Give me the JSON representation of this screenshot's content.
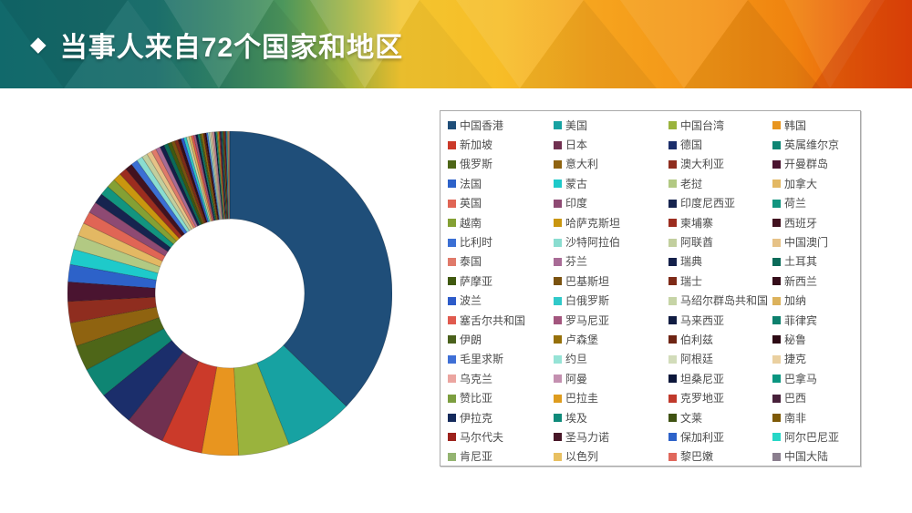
{
  "header": {
    "bullet": "◆",
    "title": "当事人来自72个国家和地区",
    "gradient_colors": [
      "#11696b",
      "#4c965c",
      "#f3c52f",
      "#f6a41e",
      "#f0830f",
      "#e54a0a"
    ],
    "title_color": "#ffffff"
  },
  "chart_data": {
    "type": "pie",
    "title": "",
    "donut": true,
    "inner_radius_ratio": 0.46,
    "start_angle_deg": 0,
    "clockwise": true,
    "grid": false,
    "legend_position": "right",
    "legend_columns": 4,
    "legend_rows": 18,
    "values_note": "no numeric labels shown in image; values are share estimates read from arc angles",
    "series": [
      {
        "name": "中国香港",
        "value": 36.7,
        "color": "#1f4e79"
      },
      {
        "name": "美国",
        "value": 6.7,
        "color": "#17a2a2"
      },
      {
        "name": "中国台湾",
        "value": 5.0,
        "color": "#9ab33d"
      },
      {
        "name": "韩国",
        "value": 3.6,
        "color": "#e8951f"
      },
      {
        "name": "新加坡",
        "value": 4.0,
        "color": "#cb3a2a"
      },
      {
        "name": "日本",
        "value": 3.8,
        "color": "#703050"
      },
      {
        "name": "德国",
        "value": 3.4,
        "color": "#1b2e6b"
      },
      {
        "name": "英属维尔京",
        "value": 3.0,
        "color": "#0e8573"
      },
      {
        "name": "俄罗斯",
        "value": 2.5,
        "color": "#4e6618"
      },
      {
        "name": "意大利",
        "value": 2.3,
        "color": "#8f6310"
      },
      {
        "name": "澳大利亚",
        "value": 2.1,
        "color": "#8f2d1f"
      },
      {
        "name": "开曼群岛",
        "value": 1.9,
        "color": "#4a1430"
      },
      {
        "name": "法国",
        "value": 1.7,
        "color": "#2d62c9"
      },
      {
        "name": "蒙古",
        "value": 1.5,
        "color": "#1ecaca"
      },
      {
        "name": "老挝",
        "value": 1.4,
        "color": "#b2c983"
      },
      {
        "name": "加拿大",
        "value": 1.3,
        "color": "#e3b863"
      },
      {
        "name": "英国",
        "value": 1.2,
        "color": "#e06555"
      },
      {
        "name": "印度",
        "value": 1.1,
        "color": "#8e4a73"
      },
      {
        "name": "印度尼西亚",
        "value": 1.0,
        "color": "#16244f"
      },
      {
        "name": "荷兰",
        "value": 0.95,
        "color": "#12957f"
      },
      {
        "name": "越南",
        "value": 0.9,
        "color": "#84a034"
      },
      {
        "name": "哈萨克斯坦",
        "value": 0.8,
        "color": "#c9960f"
      },
      {
        "name": "柬埔寨",
        "value": 0.75,
        "color": "#9c2d1f"
      },
      {
        "name": "西班牙",
        "value": 0.7,
        "color": "#421220"
      },
      {
        "name": "比利时",
        "value": 0.65,
        "color": "#3b6fd4"
      },
      {
        "name": "沙特阿拉伯",
        "value": 0.6,
        "color": "#8addd0"
      },
      {
        "name": "阿联酋",
        "value": 0.55,
        "color": "#c2cf9e"
      },
      {
        "name": "中国澳门",
        "value": 0.5,
        "color": "#e6c287"
      },
      {
        "name": "泰国",
        "value": 0.48,
        "color": "#e07a6a"
      },
      {
        "name": "芬兰",
        "value": 0.45,
        "color": "#a86b96"
      },
      {
        "name": "瑞典",
        "value": 0.42,
        "color": "#14204a"
      },
      {
        "name": "土耳其",
        "value": 0.4,
        "color": "#0b6b59"
      },
      {
        "name": "萨摩亚",
        "value": 0.37,
        "color": "#40590f"
      },
      {
        "name": "巴基斯坦",
        "value": 0.35,
        "color": "#7a520f"
      },
      {
        "name": "瑞士",
        "value": 0.33,
        "color": "#7e2a17"
      },
      {
        "name": "新西兰",
        "value": 0.3,
        "color": "#350d1a"
      },
      {
        "name": "波兰",
        "value": 0.28,
        "color": "#2d5bc9"
      },
      {
        "name": "白俄罗斯",
        "value": 0.27,
        "color": "#30c9c9"
      },
      {
        "name": "马绍尔群岛共和国",
        "value": 0.25,
        "color": "#c6d4a6"
      },
      {
        "name": "加纳",
        "value": 0.24,
        "color": "#dcb25c"
      },
      {
        "name": "塞舌尔共和国",
        "value": 0.22,
        "color": "#e05a4e"
      },
      {
        "name": "罗马尼亚",
        "value": 0.21,
        "color": "#a3567e"
      },
      {
        "name": "马来西亚",
        "value": 0.2,
        "color": "#101c42"
      },
      {
        "name": "菲律宾",
        "value": 0.19,
        "color": "#0d806d"
      },
      {
        "name": "伊朗",
        "value": 0.18,
        "color": "#4a611c"
      },
      {
        "name": "卢森堡",
        "value": 0.17,
        "color": "#96700a"
      },
      {
        "name": "伯利兹",
        "value": 0.16,
        "color": "#6e2413"
      },
      {
        "name": "秘鲁",
        "value": 0.15,
        "color": "#2d0a14"
      },
      {
        "name": "毛里求斯",
        "value": 0.15,
        "color": "#3f6fd6"
      },
      {
        "name": "约旦",
        "value": 0.14,
        "color": "#96e3d6"
      },
      {
        "name": "阿根廷",
        "value": 0.13,
        "color": "#d2dcba"
      },
      {
        "name": "捷克",
        "value": 0.13,
        "color": "#ead0a0"
      },
      {
        "name": "乌克兰",
        "value": 0.12,
        "color": "#eba5a0"
      },
      {
        "name": "阿曼",
        "value": 0.12,
        "color": "#c490b0"
      },
      {
        "name": "坦桑尼亚",
        "value": 0.11,
        "color": "#0c163a"
      },
      {
        "name": "巴拿马",
        "value": 0.11,
        "color": "#0a9580"
      },
      {
        "name": "赞比亚",
        "value": 0.1,
        "color": "#7c9e3f"
      },
      {
        "name": "巴拉圭",
        "value": 0.1,
        "color": "#de9c1e"
      },
      {
        "name": "克罗地亚",
        "value": 0.1,
        "color": "#c0392b"
      },
      {
        "name": "巴西",
        "value": 0.09,
        "color": "#47203a"
      },
      {
        "name": "伊拉克",
        "value": 0.09,
        "color": "#142a5c"
      },
      {
        "name": "埃及",
        "value": 0.09,
        "color": "#0f8a7a"
      },
      {
        "name": "文莱",
        "value": 0.08,
        "color": "#3f5212"
      },
      {
        "name": "南非",
        "value": 0.08,
        "color": "#7e5a07"
      },
      {
        "name": "马尔代夫",
        "value": 0.08,
        "color": "#9c221c"
      },
      {
        "name": "圣马力诺",
        "value": 0.07,
        "color": "#471627"
      },
      {
        "name": "保加利亚",
        "value": 0.07,
        "color": "#2d62c9"
      },
      {
        "name": "阿尔巴尼亚",
        "value": 0.07,
        "color": "#26d7c7"
      },
      {
        "name": "肯尼亚",
        "value": 0.07,
        "color": "#94b471"
      },
      {
        "name": "以色列",
        "value": 0.06,
        "color": "#e8c061"
      },
      {
        "name": "黎巴嫩",
        "value": 0.06,
        "color": "#e0685c"
      },
      {
        "name": "中国大陆",
        "value": 0.06,
        "color": "#8a7e8e"
      }
    ]
  }
}
